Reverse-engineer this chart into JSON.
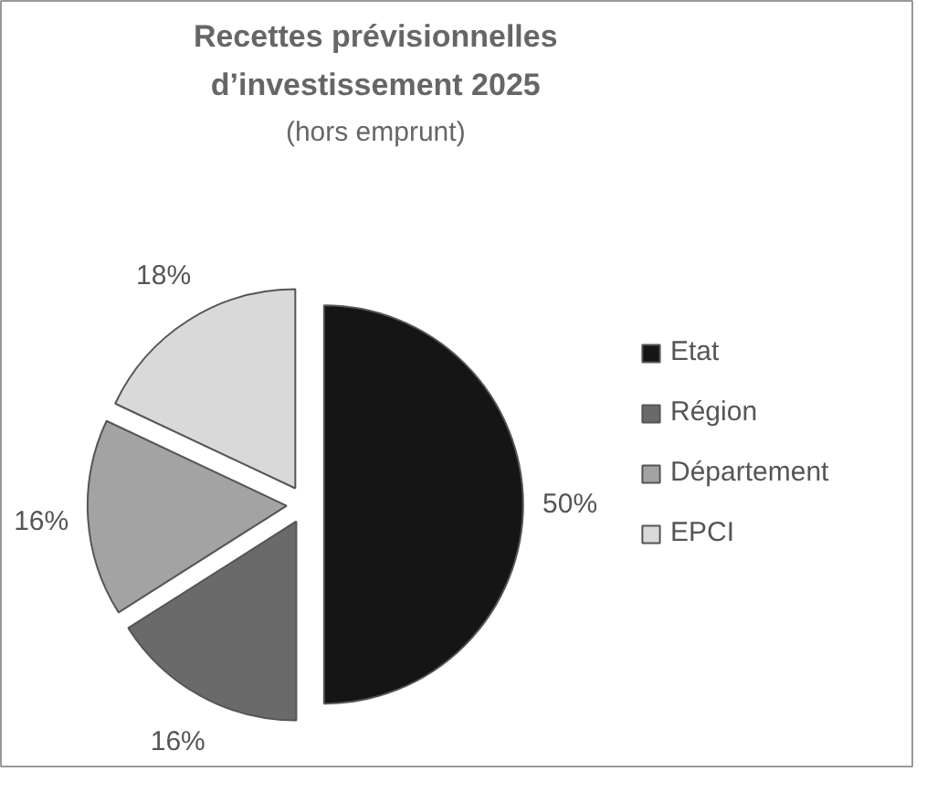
{
  "chart_data": {
    "type": "pie",
    "title": "Recettes prévisionnelles d’investissement 2025",
    "subtitle": "(hors emprunt)",
    "categories": [
      "Etat",
      "Région",
      "Département",
      "EPCI"
    ],
    "values": [
      50,
      16,
      16,
      18
    ],
    "colors": [
      "#151515",
      "#6a6a6a",
      "#a3a3a3",
      "#d9d9d9"
    ],
    "value_labels": [
      "50%",
      "16%",
      "16%",
      "18%"
    ],
    "legend": "right"
  }
}
